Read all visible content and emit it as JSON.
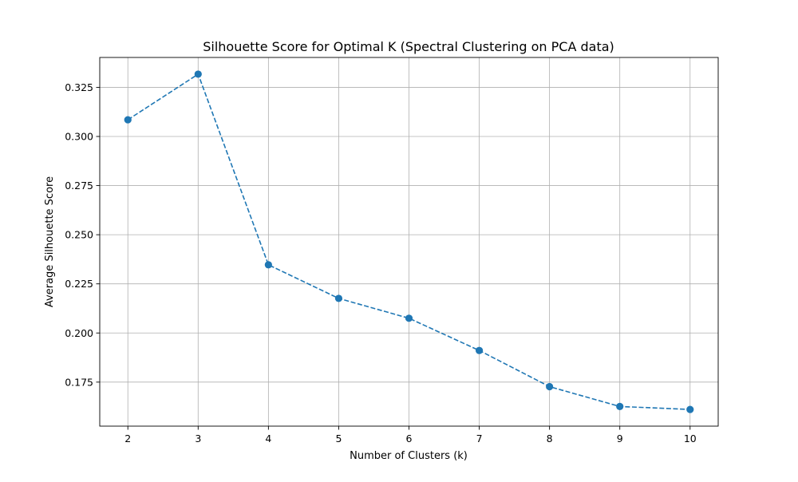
{
  "chart_data": {
    "type": "line",
    "title": "Silhouette Score for Optimal K (Spectral Clustering on PCA data)",
    "xlabel": "Number of Clusters (k)",
    "ylabel": "Average Silhouette Score",
    "x": [
      2,
      3,
      4,
      5,
      6,
      7,
      8,
      9,
      10
    ],
    "series": [
      {
        "values": [
          0.3085,
          0.3317,
          0.2347,
          0.2176,
          0.2075,
          0.1911,
          0.1727,
          0.1626,
          0.1611
        ]
      }
    ],
    "xticks": [
      2,
      3,
      4,
      5,
      6,
      7,
      8,
      9,
      10
    ],
    "xtick_labels": [
      "2",
      "3",
      "4",
      "5",
      "6",
      "7",
      "8",
      "9",
      "10"
    ],
    "yticks": [
      0.175,
      0.2,
      0.225,
      0.25,
      0.275,
      0.3,
      0.325
    ],
    "ytick_labels": [
      "0.175",
      "0.200",
      "0.225",
      "0.250",
      "0.275",
      "0.300",
      "0.325"
    ],
    "xlim": [
      1.6,
      10.4
    ],
    "ylim": [
      0.1526,
      0.3402
    ],
    "grid": true,
    "line_style": "dashed",
    "marker": "circle",
    "colors": {
      "line": "#1f77b4",
      "grid": "#b0b0b0",
      "axes": "#000000"
    }
  }
}
